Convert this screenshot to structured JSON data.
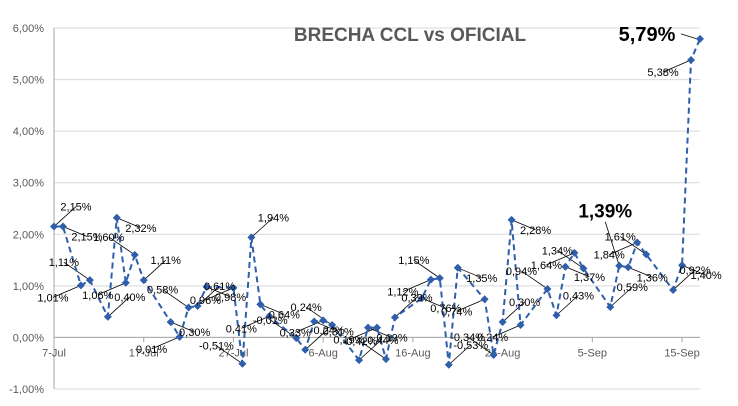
{
  "chart_data": {
    "type": "line",
    "title": "BRECHA CCL vs OFICIAL",
    "xlabel": "",
    "ylabel": "",
    "ylim": [
      -1,
      6
    ],
    "grid": true,
    "legend": "none",
    "series_color": "#2F5FAA",
    "line_style": "dashed",
    "y_ticks": [
      "-1,00%",
      "0,00%",
      "1,00%",
      "2,00%",
      "3,00%",
      "4,00%",
      "5,00%",
      "6,00%"
    ],
    "y_tick_values": [
      -1,
      0,
      1,
      2,
      3,
      4,
      5,
      6
    ],
    "x_ticks": [
      "7-Jul",
      "17-Jul",
      "27-Jul",
      "6-Aug",
      "16-Aug",
      "26-Aug",
      "5-Sep",
      "15-Sep"
    ],
    "x_tick_values": [
      0,
      10,
      20,
      30,
      40,
      50,
      60,
      70
    ],
    "x": [
      0,
      1,
      3,
      4,
      6,
      7,
      8,
      9,
      10,
      13,
      14,
      15,
      16,
      17,
      20,
      21,
      22,
      23,
      24,
      27,
      28,
      29,
      30,
      31,
      34,
      35,
      36,
      37,
      38,
      41,
      42,
      43,
      44,
      45,
      48,
      49,
      50,
      51,
      52,
      55,
      56,
      57,
      58,
      59,
      62,
      63,
      64,
      65,
      66,
      69,
      70,
      71,
      72
    ],
    "values": [
      2.15,
      2.15,
      1.01,
      1.11,
      0.4,
      2.32,
      1.06,
      1.6,
      1.11,
      0.3,
      0.01,
      0.58,
      0.61,
      0.98,
      0.96,
      -0.51,
      1.94,
      0.64,
      0.41,
      -0.01,
      -0.24,
      0.31,
      0.33,
      0.24,
      -0.44,
      0.19,
      0.19,
      -0.42,
      0.39,
      0.76,
      1.12,
      1.15,
      -0.53,
      1.35,
      0.74,
      -0.34,
      0.3,
      2.28,
      0.24,
      0.94,
      0.43,
      1.37,
      1.64,
      1.34,
      0.59,
      1.39,
      1.36,
      1.84,
      1.61,
      0.92,
      1.4,
      5.38,
      5.79
    ],
    "data_labels": [
      "2,15%",
      "2,15%",
      "1,01%",
      "1,11%",
      "0,40%",
      "2,32%",
      "1,06%",
      "1,60%",
      "1,11%",
      "0,30%",
      "0,01%",
      "0,58%",
      "0,61%",
      "0,98%",
      "0,96%",
      "-0,51%",
      "1,94%",
      "0,64%",
      "0,41%",
      "-0,01%",
      "-0,24%",
      "0,31%",
      "0,33%",
      "0,24%",
      "-0,44%",
      "0,19%",
      "0,19%",
      "-0,42%",
      "0,39%",
      "0,76%",
      "1,12%",
      "1,15%",
      "-0,53%",
      "1,35%",
      "0,74%",
      "-0,34%",
      "0,30%",
      "2,28%",
      "0,24%",
      "0,94%",
      "0,43%",
      "1,37%",
      "1,64%",
      "1,34%",
      "0,59%",
      "1,39%",
      "1,36%",
      "1,84%",
      "1,61%",
      "0,92%",
      "1,40%",
      "5,38%",
      "5,79%"
    ],
    "highlight_labels": [
      "5,79%",
      "1,39%"
    ]
  }
}
